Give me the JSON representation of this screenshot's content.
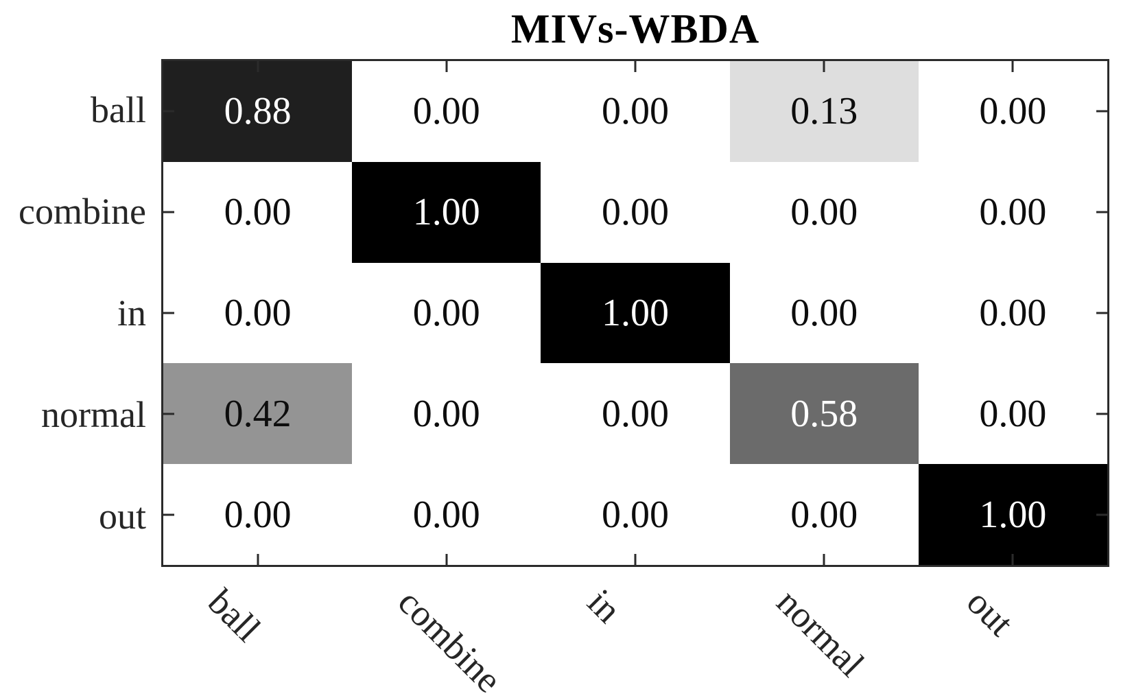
{
  "chart_data": {
    "type": "heatmap",
    "subtype": "confusion-matrix",
    "title": "MIVs-WBDA",
    "x_categories": [
      "ball",
      "combine",
      "in",
      "normal",
      "out"
    ],
    "y_categories": [
      "ball",
      "combine",
      "in",
      "normal",
      "out"
    ],
    "matrix": [
      [
        0.88,
        0.0,
        0.0,
        0.13,
        0.0
      ],
      [
        0.0,
        1.0,
        0.0,
        0.0,
        0.0
      ],
      [
        0.0,
        0.0,
        1.0,
        0.0,
        0.0
      ],
      [
        0.42,
        0.0,
        0.0,
        0.58,
        0.0
      ],
      [
        0.0,
        0.0,
        0.0,
        0.0,
        1.0
      ]
    ],
    "value_range": [
      0,
      1
    ],
    "value_format": "0.00",
    "colormap": {
      "low_value_color": "#ffffff",
      "high_value_color": "#000000",
      "cell_text_dark": "#0d0d0d",
      "cell_text_light": "#ffffff"
    },
    "axes": {
      "box": true,
      "tick_direction": "in",
      "x_tick_label_rotation_deg": 45,
      "grid": false,
      "legend": "none"
    }
  }
}
